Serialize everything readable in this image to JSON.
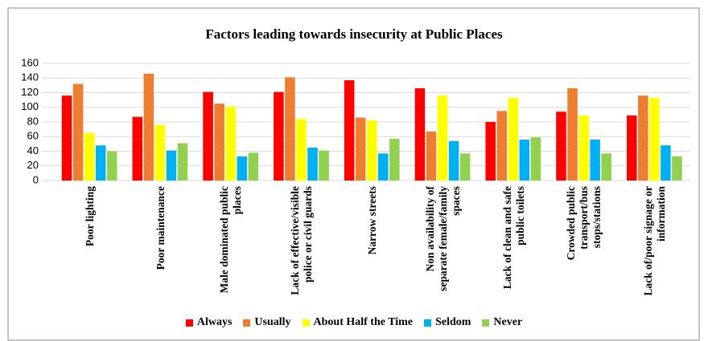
{
  "chart_data": {
    "type": "bar",
    "title": "Factors leading towards insecurity at Public Places",
    "categories": [
      "Poor lighting",
      "Poor maintenance",
      "Male dominated public places",
      "Lack of effective/visible police or civil guards",
      "Narrow streets",
      "Non availability of separate female/family spaces",
      "Lack of clean and safe public toilets",
      "Crowded public transport/bus stops/stations",
      "Lack of/poor signage or information"
    ],
    "series": [
      {
        "name": "Always",
        "color": "#ff0000",
        "values": [
          116,
          87,
          121,
          121,
          137,
          126,
          80,
          94,
          89
        ]
      },
      {
        "name": "Usually",
        "color": "#ed7d31",
        "values": [
          132,
          146,
          105,
          141,
          86,
          67,
          95,
          126,
          116
        ]
      },
      {
        "name": "About Half the Time",
        "color": "#ffff00",
        "values": [
          65,
          76,
          101,
          84,
          82,
          116,
          113,
          89,
          113
        ]
      },
      {
        "name": "Seldom",
        "color": "#00b0f0",
        "values": [
          48,
          41,
          33,
          45,
          37,
          54,
          56,
          56,
          48
        ]
      },
      {
        "name": "Never",
        "color": "#92d050",
        "values": [
          40,
          51,
          38,
          41,
          57,
          37,
          59,
          37,
          33
        ]
      }
    ],
    "ylim": [
      0,
      160
    ],
    "yticks": [
      0,
      20,
      40,
      60,
      80,
      100,
      120,
      140,
      160
    ],
    "grid": true,
    "legend": "bottom"
  }
}
